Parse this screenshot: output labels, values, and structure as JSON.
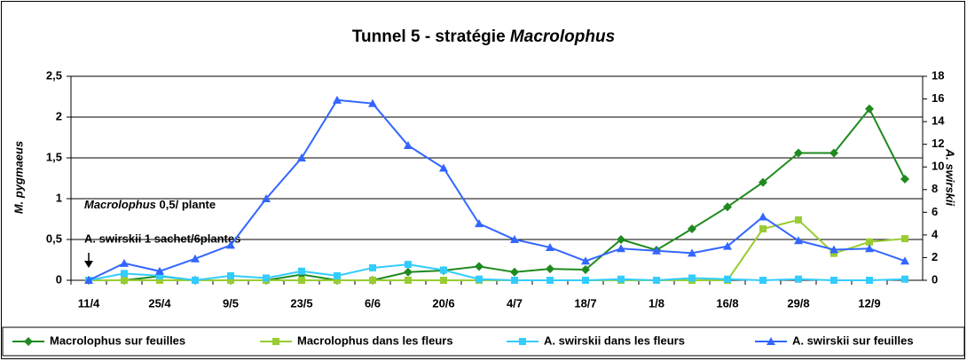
{
  "chart_data": {
    "type": "line",
    "title": [
      "Tunnel 5 - stratégie",
      "Macrolophus"
    ],
    "ylabel": "M. pygmaeus",
    "y2label": "A. swirskii",
    "annotations": [
      [
        "Macrolophus",
        "0,5/ plante"
      ],
      [
        "A. swirskii 1 sachet/6plantes"
      ]
    ],
    "categories": [
      "11/4",
      null,
      "25/4",
      null,
      "9/5",
      null,
      "23/5",
      null,
      "6/6",
      null,
      "20/6",
      null,
      "4/7",
      null,
      "18/7",
      null,
      "1/8",
      null,
      "16/8",
      null,
      "29/8",
      null,
      "12/9",
      null
    ],
    "ylim": [
      0,
      2.5
    ],
    "yticks": [
      0,
      {
        "value": 0.5,
        "label": "0,5"
      },
      1,
      {
        "value": 1.5,
        "label": "1,5"
      },
      2,
      {
        "value": 2.5,
        "label": "2,5"
      }
    ],
    "y2lim": [
      0,
      18
    ],
    "y2ticks": [
      0,
      2,
      4,
      6,
      8,
      10,
      12,
      14,
      16,
      18
    ],
    "grid": true,
    "legend": "bottom",
    "series": [
      {
        "name": "Macrolophus sur feuilles",
        "color": "#1f8a1f",
        "marker": "diamond",
        "values": [
          0,
          0,
          0.05,
          0,
          0,
          0,
          0.07,
          0,
          0,
          0.1,
          0.12,
          0.17,
          0.1,
          0.14,
          0.13,
          0.5,
          0.37,
          0.63,
          0.9,
          1.2,
          1.56,
          1.56,
          2.1,
          1.24
        ]
      },
      {
        "name": "Macrolophus dans les fleurs",
        "color": "#99cc33",
        "marker": "square",
        "values": [
          0,
          0,
          0,
          0,
          0,
          0,
          0,
          0,
          0,
          0,
          0,
          0,
          0,
          0,
          0,
          0,
          0,
          0,
          0,
          0.63,
          0.74,
          0.33,
          0.47,
          0.51
        ]
      },
      {
        "name": "A. swirskii dans les fleurs",
        "color": "#33ccff",
        "marker": "square",
        "axis": "y2",
        "values": [
          0,
          0.6,
          0.4,
          0,
          0.4,
          0.2,
          0.8,
          0.4,
          1.1,
          1.4,
          0.9,
          0.1,
          0,
          0,
          0,
          0.1,
          0,
          0.2,
          0.1,
          0,
          0.1,
          0,
          0,
          0.1
        ]
      },
      {
        "name": "A. swirskii sur feuilles",
        "color": "#3366ff",
        "marker": "triangle",
        "axis": "y2",
        "values": [
          0,
          1.5,
          0.8,
          1.9,
          3.1,
          7.2,
          10.8,
          15.9,
          15.6,
          11.9,
          9.9,
          5.0,
          3.6,
          2.9,
          1.7,
          2.8,
          2.6,
          2.4,
          3.0,
          5.6,
          3.5,
          2.7,
          2.8,
          1.7
        ]
      }
    ]
  }
}
